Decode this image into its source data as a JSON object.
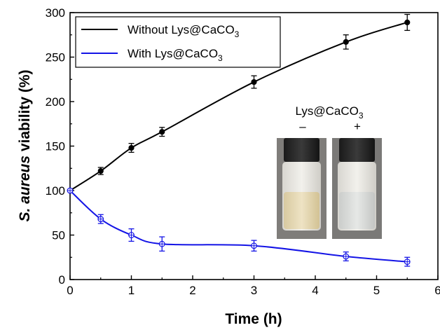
{
  "chart_data": {
    "type": "line",
    "xlabel": "Time (h)",
    "ylabel_italic": "S. aureus",
    "ylabel_rest": " viability (%)",
    "xlim": [
      0,
      6
    ],
    "ylim": [
      0,
      300
    ],
    "xticks": [
      0,
      1,
      2,
      3,
      4,
      5,
      6
    ],
    "yticks": [
      0,
      50,
      100,
      150,
      200,
      250,
      300
    ],
    "grid": false,
    "legend_position": "top-left",
    "series": [
      {
        "name_prefix": "Without Lys@CaCO",
        "name_sub": "3",
        "color": "#000000",
        "marker": "filled-circle",
        "x": [
          0,
          0.5,
          1,
          1.5,
          3,
          4.5,
          5.5
        ],
        "y": [
          100,
          122,
          148,
          166,
          222,
          267,
          289
        ],
        "err": [
          0,
          4,
          5,
          5,
          7,
          8,
          9
        ]
      },
      {
        "name_prefix": "With Lys@CaCO",
        "name_sub": "3",
        "color": "#1414e6",
        "marker": "open-circle-cross",
        "x": [
          0,
          0.5,
          1,
          1.5,
          3,
          4.5,
          5.5
        ],
        "y": [
          100,
          68,
          50,
          40,
          38,
          26,
          20
        ],
        "err": [
          0,
          5,
          7,
          8,
          6,
          5,
          5
        ]
      }
    ],
    "inset": {
      "title_prefix": "Lys@CaCO",
      "title_sub": "3",
      "minus_label": "–",
      "plus_label": "+"
    }
  }
}
